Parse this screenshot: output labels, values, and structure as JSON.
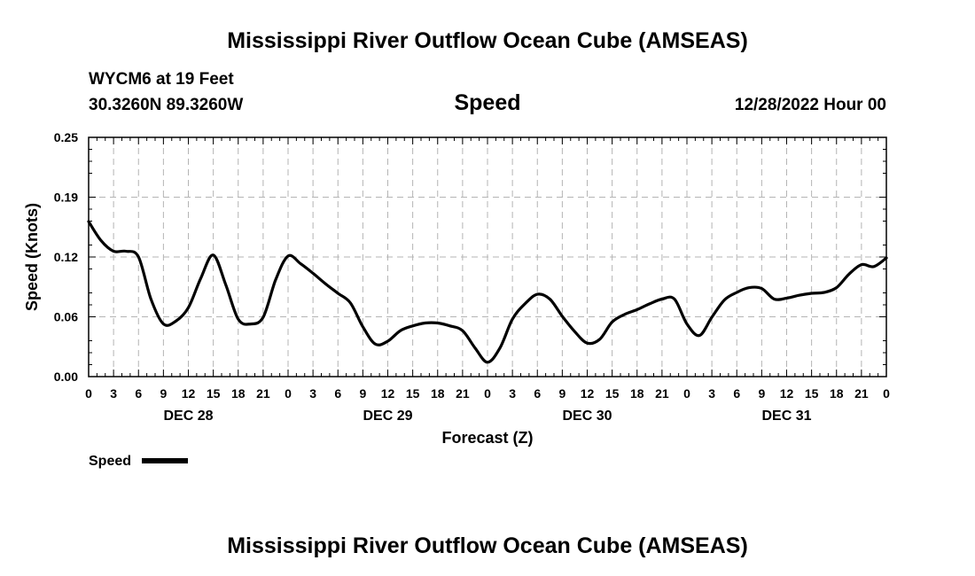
{
  "header": {
    "title": "Mississippi River Outflow Ocean Cube (AMSEAS)",
    "station": "WYCM6 at 19 Feet",
    "coordinates": "30.3260N  89.3260W",
    "variable": "Speed",
    "issued": "12/28/2022 Hour 00"
  },
  "footer": {
    "title": "Mississippi River Outflow Ocean Cube (AMSEAS)"
  },
  "chart_data": {
    "type": "line",
    "title": "Speed",
    "xlabel": "Forecast (Z)",
    "ylabel": "Speed (Knots)",
    "ylim": [
      0,
      0.25
    ],
    "yticks": [
      "0.00",
      "0.06",
      "0.12",
      "0.19",
      "0.25"
    ],
    "ytick_values": [
      0,
      0.0625,
      0.125,
      0.1875,
      0.25
    ],
    "xlim": [
      0,
      96
    ],
    "xtick_labels": [
      "0",
      "3",
      "6",
      "9",
      "12",
      "15",
      "18",
      "21",
      "0",
      "3",
      "6",
      "9",
      "12",
      "15",
      "18",
      "21",
      "0",
      "3",
      "6",
      "9",
      "12",
      "15",
      "18",
      "21",
      "0",
      "3",
      "6",
      "9",
      "12",
      "15",
      "18",
      "21",
      "0"
    ],
    "day_labels": [
      {
        "label": "DEC 28",
        "hour": 12
      },
      {
        "label": "DEC 29",
        "hour": 36
      },
      {
        "label": "DEC 30",
        "hour": 60
      },
      {
        "label": "DEC 31",
        "hour": 84
      }
    ],
    "grid": true,
    "legend": "bottom-left",
    "series": [
      {
        "name": "Speed",
        "color": "#000000",
        "x": [
          0,
          1.5,
          3,
          4.5,
          6,
          7.5,
          9,
          10.5,
          12,
          13.5,
          15,
          16.5,
          18,
          19.5,
          21,
          22.5,
          24,
          25.5,
          27,
          28.5,
          30,
          31.5,
          33,
          34.5,
          36,
          37.5,
          39,
          40.5,
          42,
          43.5,
          45,
          46.5,
          48,
          49.5,
          51,
          52.5,
          54,
          55.5,
          57,
          58.5,
          60,
          61.5,
          63,
          64.5,
          66,
          67.5,
          69,
          70.5,
          72,
          73.5,
          75,
          76.5,
          78,
          79.5,
          81,
          82.5,
          84,
          85.5,
          87,
          88.5,
          90,
          91.5,
          93,
          94.5,
          96
        ],
        "values": [
          0.162,
          0.142,
          0.131,
          0.131,
          0.125,
          0.081,
          0.055,
          0.058,
          0.072,
          0.103,
          0.127,
          0.096,
          0.06,
          0.055,
          0.062,
          0.101,
          0.126,
          0.118,
          0.108,
          0.097,
          0.087,
          0.077,
          0.052,
          0.034,
          0.037,
          0.048,
          0.053,
          0.056,
          0.056,
          0.053,
          0.048,
          0.03,
          0.015,
          0.03,
          0.06,
          0.076,
          0.086,
          0.081,
          0.063,
          0.047,
          0.035,
          0.039,
          0.057,
          0.065,
          0.07,
          0.076,
          0.081,
          0.081,
          0.055,
          0.043,
          0.062,
          0.08,
          0.088,
          0.093,
          0.092,
          0.081,
          0.082,
          0.085,
          0.087,
          0.088,
          0.093,
          0.107,
          0.117,
          0.115,
          0.124
        ]
      }
    ]
  }
}
